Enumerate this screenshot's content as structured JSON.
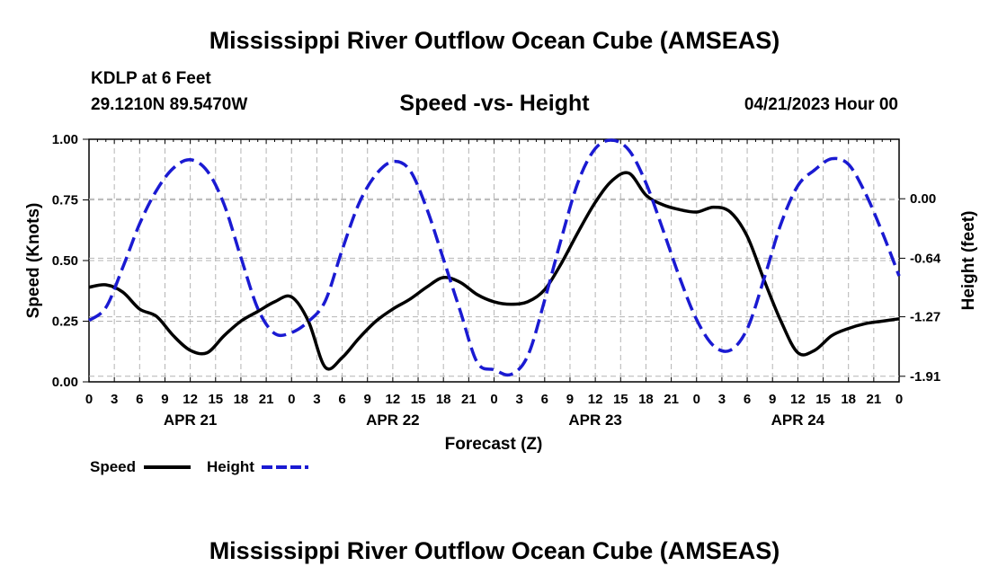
{
  "page": {
    "title": "Mississippi River Outflow Ocean Cube (AMSEAS)",
    "station_line": "KDLP at 6 Feet",
    "coords_line": "29.1210N  89.5470W",
    "subtitle": "Speed -vs- Height",
    "date_line": "04/21/2023 Hour 00",
    "footer_title": "Mississippi River Outflow Ocean Cube (AMSEAS)"
  },
  "chart_data": {
    "type": "line",
    "title": "Speed -vs- Height",
    "xlabel": "Forecast (Z)",
    "ylabel_left": "Speed (Knots)",
    "ylabel_right": "Height (feet)",
    "x_range": [
      0,
      96
    ],
    "ylim_left": [
      0,
      1
    ],
    "ylim_right": [
      -1.97,
      0.64
    ],
    "grid": true,
    "x_tick_labels": [
      "0",
      "3",
      "6",
      "9",
      "12",
      "15",
      "18",
      "21",
      "0",
      "3",
      "6",
      "9",
      "12",
      "15",
      "18",
      "21",
      "0",
      "3",
      "6",
      "9",
      "12",
      "15",
      "18",
      "21",
      "0",
      "3",
      "6",
      "9",
      "12",
      "15",
      "18",
      "21",
      "0"
    ],
    "day_labels": [
      {
        "label": "APR 21",
        "hour": 12
      },
      {
        "label": "APR 22",
        "hour": 36
      },
      {
        "label": "APR 23",
        "hour": 60
      },
      {
        "label": "APR 24",
        "hour": 84
      }
    ],
    "left_ticks": [
      "0.00",
      "0.25",
      "0.50",
      "0.75",
      "1.00"
    ],
    "left_tick_values": [
      0,
      0.25,
      0.5,
      0.75,
      1.0
    ],
    "right_ticks": [
      "0.00",
      "-0.64",
      "-1.27",
      "-1.91"
    ],
    "right_tick_values": [
      0.0,
      -0.64,
      -1.27,
      -1.91
    ],
    "legend": {
      "speed_label": "Speed",
      "height_label": "Height",
      "placement": "bottom-left"
    },
    "series": [
      {
        "name": "Speed",
        "axis": "left",
        "color": "#000000",
        "style": "solid",
        "x": [
          0,
          2,
          4,
          6,
          8,
          10,
          12,
          14,
          16,
          18,
          20,
          22,
          24,
          26,
          28,
          30,
          32,
          34,
          36,
          38,
          40,
          42,
          44,
          46,
          48,
          50,
          52,
          54,
          56,
          58,
          60,
          62,
          64,
          66,
          68,
          70,
          72,
          74,
          76,
          78,
          80,
          82,
          84,
          86,
          88,
          90,
          92,
          94,
          96
        ],
        "values": [
          0.39,
          0.4,
          0.37,
          0.3,
          0.27,
          0.19,
          0.13,
          0.12,
          0.19,
          0.25,
          0.29,
          0.33,
          0.35,
          0.25,
          0.06,
          0.1,
          0.18,
          0.25,
          0.3,
          0.34,
          0.39,
          0.43,
          0.41,
          0.36,
          0.33,
          0.32,
          0.33,
          0.38,
          0.49,
          0.62,
          0.74,
          0.83,
          0.86,
          0.77,
          0.73,
          0.71,
          0.7,
          0.72,
          0.7,
          0.6,
          0.42,
          0.25,
          0.12,
          0.13,
          0.19,
          0.22,
          0.24,
          0.25,
          0.26
        ]
      },
      {
        "name": "Height",
        "axis": "right",
        "color": "#1a1ad2",
        "style": "dashed",
        "x": [
          0,
          2,
          4,
          6,
          8,
          10,
          12,
          14,
          16,
          18,
          20,
          22,
          24,
          26,
          28,
          30,
          32,
          34,
          36,
          38,
          40,
          42,
          44,
          46,
          48,
          50,
          52,
          54,
          56,
          58,
          60,
          62,
          64,
          66,
          68,
          70,
          72,
          74,
          76,
          78,
          80,
          82,
          84,
          86,
          88,
          90,
          92,
          94,
          96
        ],
        "values": [
          -1.31,
          -1.17,
          -0.74,
          -0.27,
          0.09,
          0.33,
          0.42,
          0.3,
          -0.06,
          -0.63,
          -1.18,
          -1.45,
          -1.44,
          -1.32,
          -1.1,
          -0.55,
          -0.05,
          0.26,
          0.4,
          0.31,
          -0.1,
          -0.65,
          -1.21,
          -1.76,
          -1.84,
          -1.89,
          -1.69,
          -1.09,
          -0.42,
          0.19,
          0.54,
          0.63,
          0.52,
          0.17,
          -0.33,
          -0.85,
          -1.3,
          -1.58,
          -1.63,
          -1.4,
          -0.86,
          -0.27,
          0.14,
          0.31,
          0.43,
          0.37,
          0.06,
          -0.36,
          -0.83
        ]
      }
    ]
  }
}
